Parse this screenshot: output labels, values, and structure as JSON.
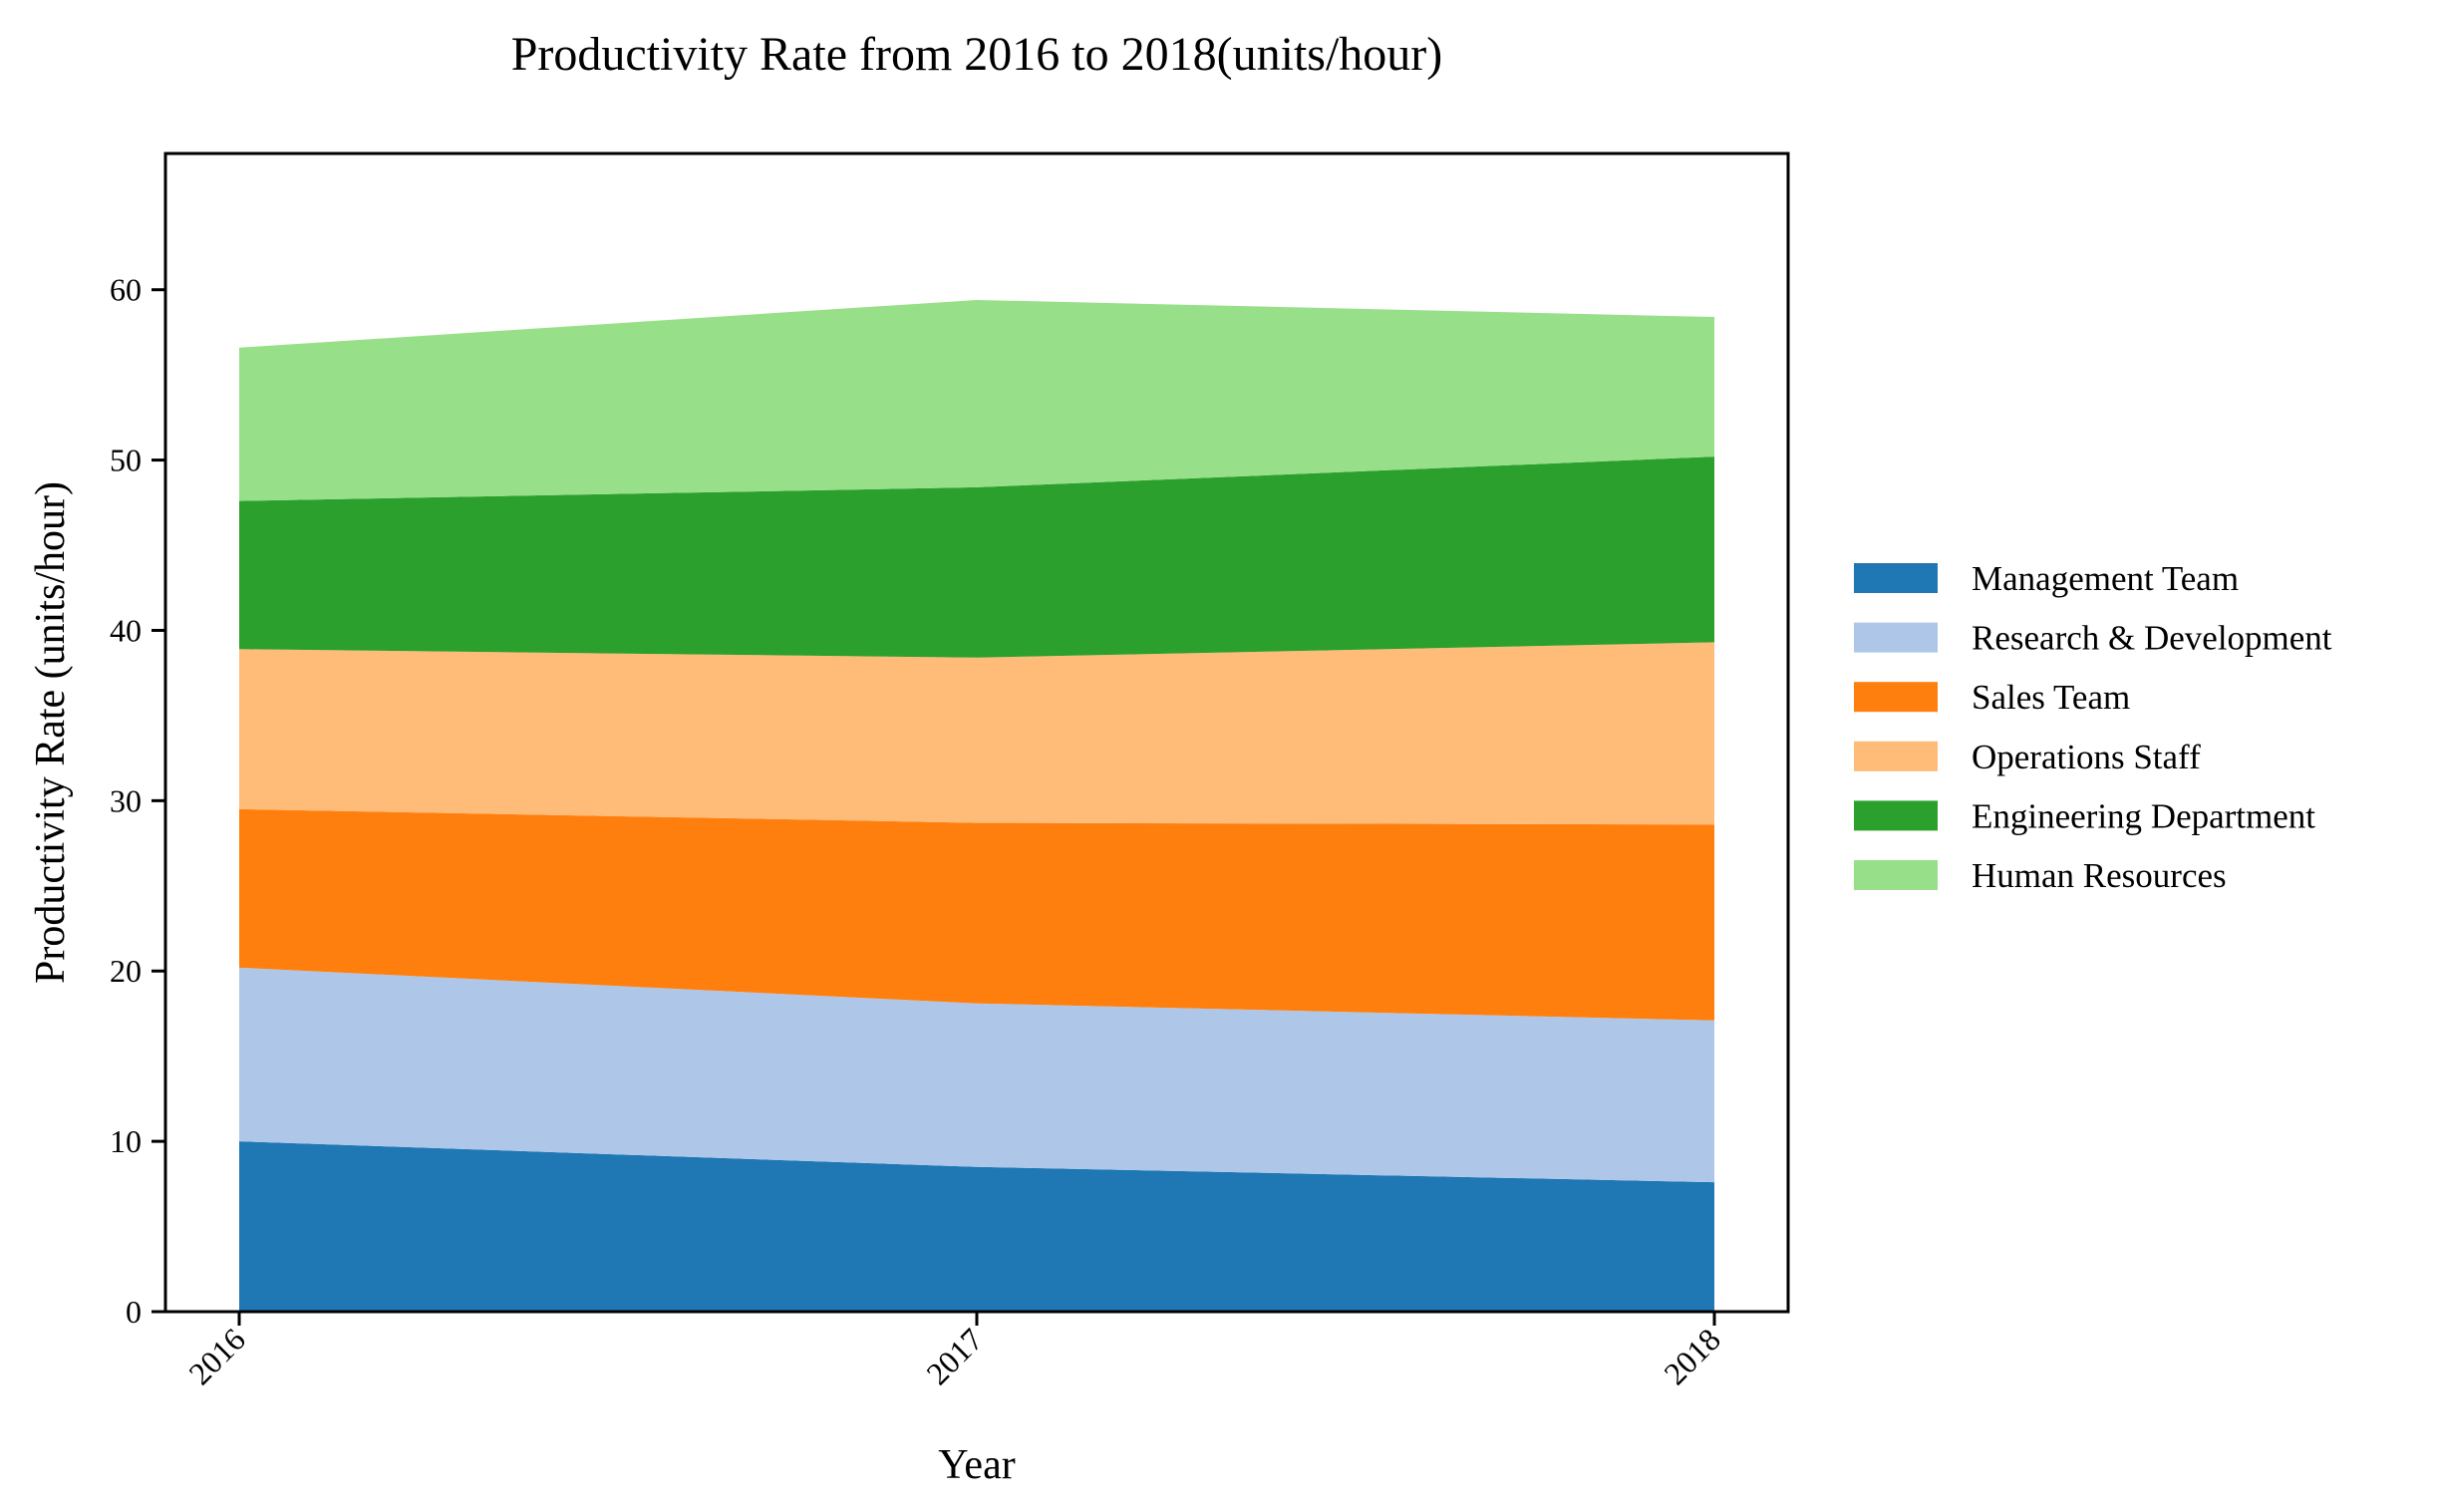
{
  "chart_data": {
    "type": "area",
    "stacked": true,
    "title": "Productivity Rate from 2016 to 2018(units/hour)",
    "xlabel": "Year",
    "ylabel": "Productivity Rate (units/hour)",
    "x": [
      "2016",
      "2017",
      "2018"
    ],
    "ylim": [
      0,
      68
    ],
    "yticks": [
      0,
      10,
      20,
      30,
      40,
      50,
      60
    ],
    "grid": false,
    "legend": "right",
    "series": [
      {
        "name": "Management Team",
        "color": "#1f77b4",
        "values": [
          10.0,
          8.5,
          7.6
        ]
      },
      {
        "name": "Research & Development",
        "color": "#aec7e8",
        "values": [
          10.2,
          9.6,
          9.5
        ]
      },
      {
        "name": "Sales Team",
        "color": "#ff7f0e",
        "values": [
          9.3,
          10.6,
          11.5
        ]
      },
      {
        "name": "Operations Staff",
        "color": "#ffbb78",
        "values": [
          9.4,
          9.7,
          10.7
        ]
      },
      {
        "name": "Engineering Department",
        "color": "#2ca02c",
        "values": [
          8.7,
          10.0,
          10.9
        ]
      },
      {
        "name": "Human Resources",
        "color": "#98df8a",
        "values": [
          9.0,
          11.0,
          8.2
        ]
      }
    ]
  }
}
